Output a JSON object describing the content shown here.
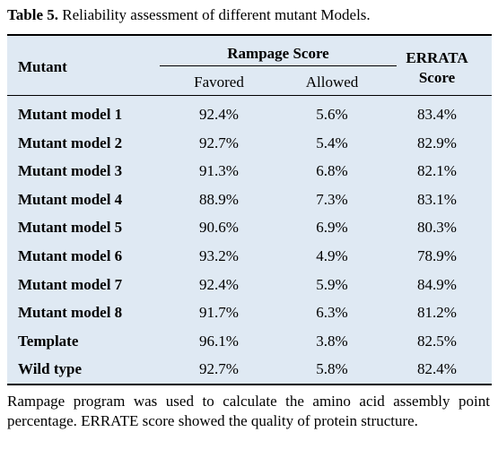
{
  "caption": {
    "label": "Table 5.",
    "text": " Reliability assessment of different mutant Models."
  },
  "table": {
    "headers": {
      "mutant": "Mutant",
      "rampage": "Rampage Score",
      "favored": "Favored",
      "allowed": "Allowed",
      "errata_line1": "ERRATA",
      "errata_line2": "Score"
    },
    "rows": [
      {
        "name": "Mutant model 1",
        "favored": "92.4%",
        "allowed": "5.6%",
        "errata": "83.4%"
      },
      {
        "name": "Mutant model 2",
        "favored": "92.7%",
        "allowed": "5.4%",
        "errata": "82.9%"
      },
      {
        "name": "Mutant model 3",
        "favored": "91.3%",
        "allowed": "6.8%",
        "errata": "82.1%"
      },
      {
        "name": "Mutant model 4",
        "favored": "88.9%",
        "allowed": "7.3%",
        "errata": "83.1%"
      },
      {
        "name": "Mutant model 5",
        "favored": "90.6%",
        "allowed": "6.9%",
        "errata": "80.3%"
      },
      {
        "name": "Mutant model 6",
        "favored": "93.2%",
        "allowed": "4.9%",
        "errata": "78.9%"
      },
      {
        "name": "Mutant model 7",
        "favored": "92.4%",
        "allowed": "5.9%",
        "errata": "84.9%"
      },
      {
        "name": "Mutant model 8",
        "favored": "91.7%",
        "allowed": "6.3%",
        "errata": "81.2%"
      },
      {
        "name": "Template",
        "favored": "96.1%",
        "allowed": "3.8%",
        "errata": "82.5%"
      },
      {
        "name": "Wild type",
        "favored": "92.7%",
        "allowed": "5.8%",
        "errata": "82.4%"
      }
    ]
  },
  "footnote": "Rampage program was used to calculate the amino acid assembly point percentage. ERRATE score showed the quality of protein structure."
}
